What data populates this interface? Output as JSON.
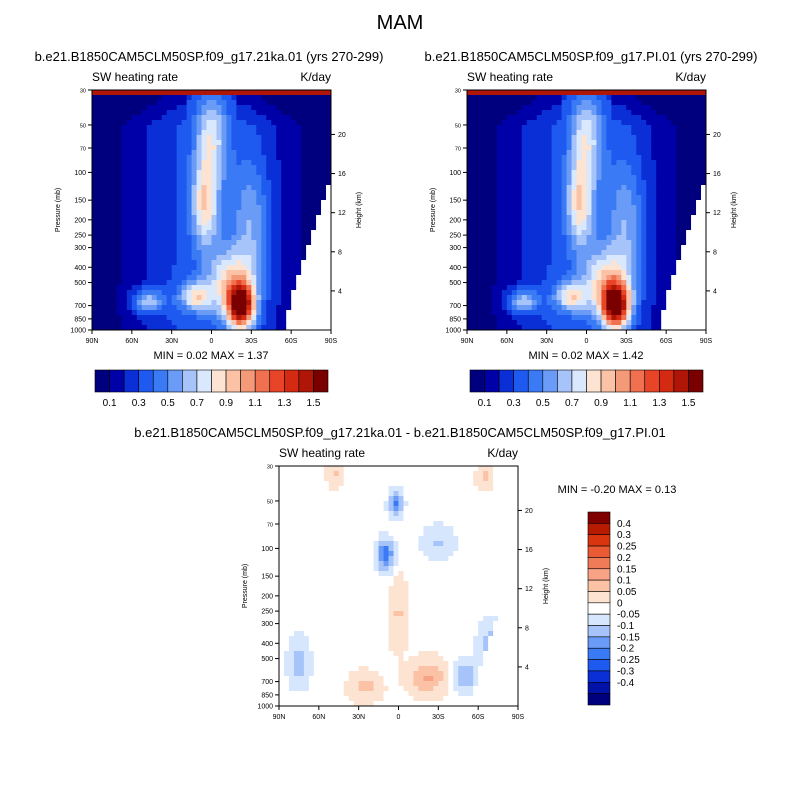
{
  "title": "MAM",
  "colors": {
    "abs_levels": [
      "#00007f",
      "#0000a8",
      "#0a2fd6",
      "#1e5af0",
      "#3a7bf5",
      "#6a9bf7",
      "#a6c4f9",
      "#d9e8fc",
      "#fde3d1",
      "#fbc2a6",
      "#f59a78",
      "#f07050",
      "#e84528",
      "#d42a12",
      "#b01608",
      "#7a0000"
    ],
    "diff_levels": [
      "#00007f",
      "#0012a8",
      "#0a2fd6",
      "#1e5af0",
      "#3a7bf5",
      "#6a9bf7",
      "#a6c4f9",
      "#d6e6fc",
      "#ffffff",
      "#fde3d1",
      "#fbc2a6",
      "#f8a385",
      "#f07b58",
      "#ea5a35",
      "#d9350f",
      "#b81a00",
      "#800000"
    ]
  },
  "chart_data": [
    {
      "type": "heatmap",
      "panel": "top-left",
      "title": "b.e21.B1850CAM5CLM50SP.f09_g17.21ka.01 (yrs 270-299)",
      "left_label": "SW heating rate",
      "right_label": "K/day",
      "ylabel": "Pressure (mb)",
      "ylabel_right": "Height (km)",
      "x_ticks": [
        "90N",
        "60N",
        "30N",
        "0",
        "30S",
        "60S",
        "90S"
      ],
      "y_ticks": [
        "1000",
        "850",
        "700",
        "500",
        "400",
        "300",
        "250",
        "200",
        "150",
        "100",
        "70",
        "50",
        "30"
      ],
      "y_ticks_right": [
        "4",
        "8",
        "12",
        "16",
        "20"
      ],
      "stats": {
        "min_label": "MIN =",
        "min": "0.02",
        "max_label": "MAX =",
        "max": "1.37"
      },
      "colorbar_labels": [
        "0.1",
        "0.3",
        "0.5",
        "0.7",
        "0.9",
        "1.1",
        "1.3",
        "1.5"
      ]
    },
    {
      "type": "heatmap",
      "panel": "top-right",
      "title": "b.e21.B1850CAM5CLM50SP.f09_g17.PI.01 (yrs 270-299)",
      "left_label": "SW heating rate",
      "right_label": "K/day",
      "ylabel": "Pressure (mb)",
      "ylabel_right": "Height (km)",
      "x_ticks": [
        "90N",
        "60N",
        "30N",
        "0",
        "30S",
        "60S",
        "90S"
      ],
      "y_ticks": [
        "1000",
        "850",
        "700",
        "500",
        "400",
        "300",
        "250",
        "200",
        "150",
        "100",
        "70",
        "50",
        "30"
      ],
      "y_ticks_right": [
        "4",
        "8",
        "12",
        "16",
        "20"
      ],
      "stats": {
        "min_label": "MIN =",
        "min": "0.02",
        "max_label": "MAX =",
        "max": "1.42"
      },
      "colorbar_labels": [
        "0.1",
        "0.3",
        "0.5",
        "0.7",
        "0.9",
        "1.1",
        "1.3",
        "1.5"
      ]
    },
    {
      "type": "heatmap",
      "panel": "bottom",
      "title": "b.e21.B1850CAM5CLM50SP.f09_g17.21ka.01 - b.e21.B1850CAM5CLM50SP.f09_g17.PI.01",
      "left_label": "SW heating rate",
      "right_label": "K/day",
      "ylabel": "Pressure (mb)",
      "ylabel_right": "Height (km)",
      "x_ticks": [
        "90N",
        "60N",
        "30N",
        "0",
        "30S",
        "60S",
        "90S"
      ],
      "y_ticks": [
        "1000",
        "850",
        "700",
        "500",
        "400",
        "300",
        "250",
        "200",
        "150",
        "100",
        "70",
        "50",
        "30"
      ],
      "y_ticks_right": [
        "4",
        "8",
        "12",
        "16",
        "20"
      ],
      "stats": {
        "min_label": "MIN =",
        "min": "-0.20",
        "max_label": "MAX =",
        "max": "0.13"
      },
      "colorbar_labels": [
        "0.4",
        "0.3",
        "0.25",
        "0.2",
        "0.15",
        "0.1",
        "0.05",
        "0",
        "-0.05",
        "-0.1",
        "-0.15",
        "-0.2",
        "-0.25",
        "-0.3",
        "-0.4"
      ]
    }
  ]
}
